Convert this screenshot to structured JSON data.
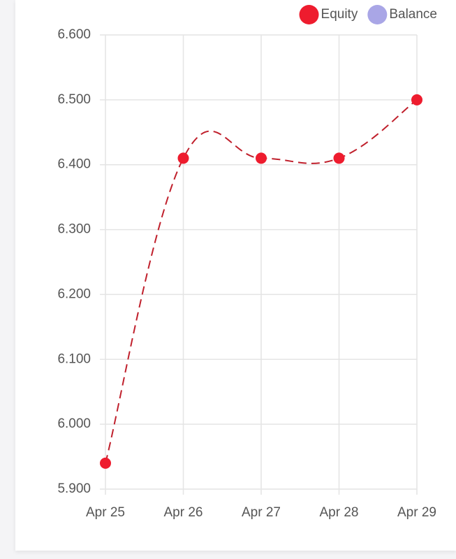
{
  "chart_data": {
    "type": "line",
    "categories": [
      "Apr 25",
      "Apr 26",
      "Apr 27",
      "Apr 28",
      "Apr 29"
    ],
    "series": [
      {
        "name": "Equity",
        "color": "#ee1c2e",
        "values": [
          5940,
          6410,
          6410,
          6410,
          6500
        ]
      },
      {
        "name": "Balance",
        "color": "#a9a6e6",
        "values": [
          null,
          null,
          null,
          null,
          null
        ]
      }
    ],
    "ylim": [
      5900,
      6600
    ],
    "yticks": [
      {
        "value": 5900,
        "label": "5.900"
      },
      {
        "value": 6000,
        "label": "6.000"
      },
      {
        "value": 6100,
        "label": "6.100"
      },
      {
        "value": 6200,
        "label": "6.200"
      },
      {
        "value": 6300,
        "label": "6.300"
      },
      {
        "value": 6400,
        "label": "6.400"
      },
      {
        "value": 6500,
        "label": "6.500"
      },
      {
        "value": 6600,
        "label": "6.600"
      }
    ],
    "grid": true,
    "dashed": true,
    "legend": "top-right"
  }
}
